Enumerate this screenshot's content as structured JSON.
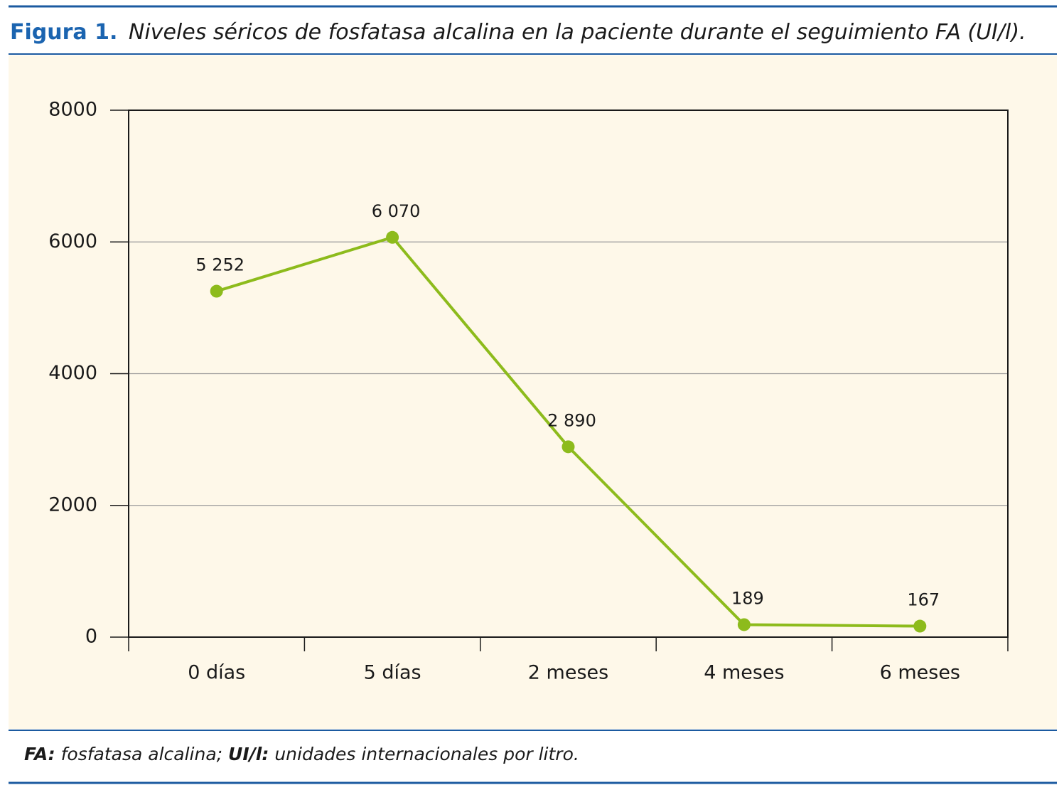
{
  "chart_data": {
    "type": "line",
    "figure_label": "Figura 1.",
    "title": "Niveles séricos de fosfatasa alcalina en la paciente durante el seguimiento FA (UI/l).",
    "categories": [
      "0 días",
      "5 días",
      "2 meses",
      "4 meses",
      "6 meses"
    ],
    "series": [
      {
        "color": "#8dbb1c",
        "values": [
          5252,
          6070,
          2890,
          189,
          167
        ],
        "value_labels": [
          "5 252",
          "6 070",
          "2 890",
          "189",
          "167"
        ]
      }
    ],
    "ylim": [
      0,
      8000
    ],
    "yticks": [
      0,
      2000,
      4000,
      6000,
      8000
    ],
    "grid": true,
    "notes": [
      "FA:",
      "fosfatasa alcalina;",
      "UI/l:",
      "unidades internacionales por litro."
    ]
  }
}
